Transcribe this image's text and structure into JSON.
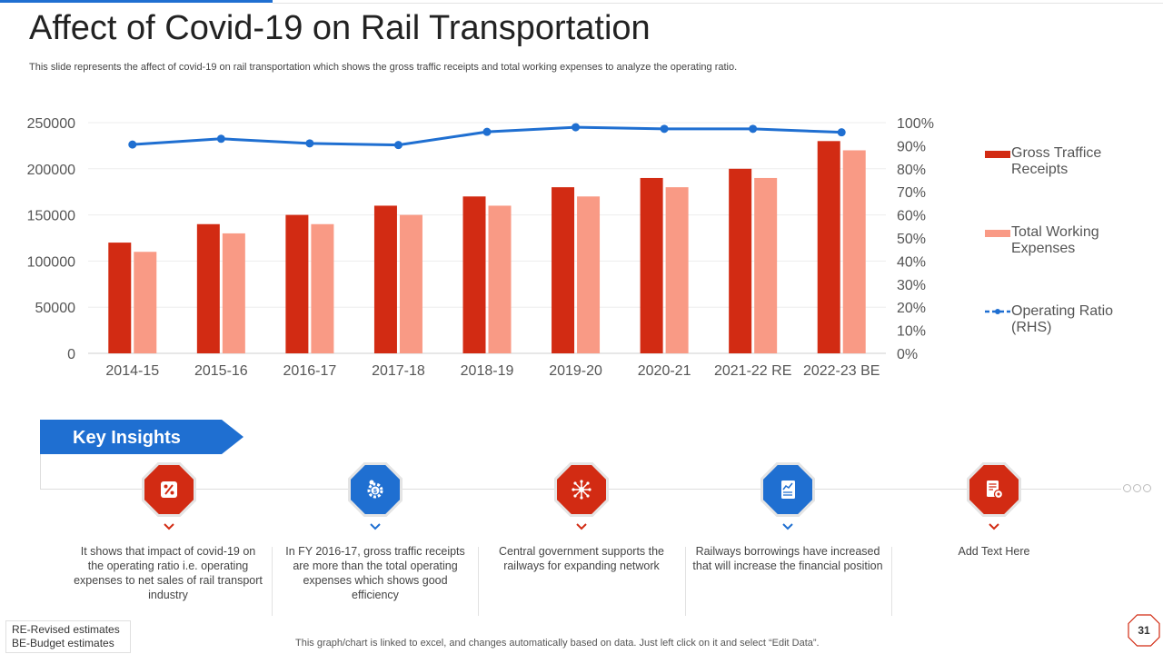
{
  "title": "Affect of Covid-19 on Rail Transportation",
  "subtitle": "This slide represents the affect of covid-19 on rail transportation which shows the gross traffic receipts and total working expenses to analyze the operating ratio.",
  "chart_data": {
    "type": "bar",
    "categories": [
      "2014-15",
      "2015-16",
      "2016-17",
      "2017-18",
      "2018-19",
      "2019-20",
      "2020-21",
      "2021-22 RE",
      "2022-23 BE"
    ],
    "series": [
      {
        "name": "Gross Traffice Receipts",
        "type": "bar",
        "axis": "left",
        "color": "#d22b13",
        "values": [
          120000,
          140000,
          150000,
          160000,
          170000,
          180000,
          190000,
          200000,
          230000
        ]
      },
      {
        "name": "Total Working Expenses",
        "type": "bar",
        "axis": "left",
        "color": "#f99a85",
        "values": [
          110000,
          130000,
          140000,
          150000,
          160000,
          170000,
          180000,
          190000,
          220000
        ]
      },
      {
        "name": "Operating Ratio (RHS)",
        "type": "line",
        "axis": "right",
        "color": "#1f6fd1",
        "values": [
          90.5,
          93,
          91,
          90.3,
          96,
          98,
          97.3,
          97.3,
          95.8
        ]
      }
    ],
    "y_left": {
      "min": 0,
      "max": 250000,
      "ticks": [
        "0",
        "50000",
        "100000",
        "150000",
        "200000",
        "250000"
      ]
    },
    "y_right": {
      "min": 0,
      "max": 100,
      "ticks": [
        "0%",
        "10%",
        "20%",
        "30%",
        "40%",
        "50%",
        "60%",
        "70%",
        "80%",
        "90%",
        "100%"
      ]
    },
    "legend_position": "right"
  },
  "legend": [
    {
      "label": "Gross Traffice Receipts",
      "color": "#d22b13"
    },
    {
      "label": "Total Working Expenses",
      "color": "#f99a85"
    },
    {
      "label": "Operating Ratio (RHS)",
      "color": "#1f6fd1"
    }
  ],
  "insights": {
    "header": "Key Insights",
    "items": [
      {
        "icon": "percent-icon",
        "color": "#d22b13",
        "text": "It shows that impact of covid-19  on the operating  ratio i.e. operating expenses to net sales of rail transport industry"
      },
      {
        "icon": "gear-dollar-icon",
        "color": "#1f6fd1",
        "text": "In FY 2016-17,  gross traffic receipts are more than the total operating expenses which shows good efficiency"
      },
      {
        "icon": "network-icon",
        "color": "#d22b13",
        "text": "Central government  supports the railways for expanding network"
      },
      {
        "icon": "financial-report-icon",
        "color": "#1f6fd1",
        "text": "Railways borrowings have increased that will increase the financial position"
      },
      {
        "icon": "document-gear-icon",
        "color": "#d22b13",
        "text": "Add Text Here"
      }
    ]
  },
  "notes": {
    "re": "RE-Revised estimates",
    "be": "BE-Budget estimates"
  },
  "footer": "This graph/chart is linked to excel,  and changes automatically based on data. Just left click on it and select “Edit Data”.",
  "page_number": "31"
}
